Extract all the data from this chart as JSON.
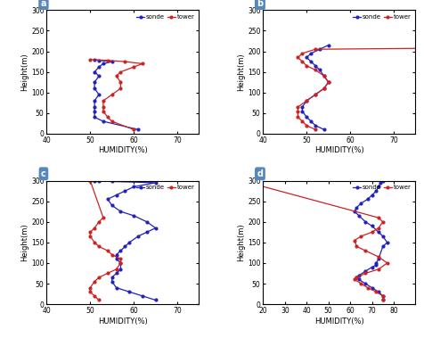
{
  "panels": [
    {
      "label": "a",
      "xlim": [
        40,
        75
      ],
      "xticks": [
        40,
        50,
        60,
        70
      ],
      "ylim": [
        0,
        300
      ],
      "yticks": [
        0,
        50,
        100,
        150,
        200,
        250,
        300
      ],
      "sonde_humidity": [
        61,
        53,
        51,
        51,
        51,
        51,
        52,
        51,
        51,
        52,
        51,
        52,
        53,
        55,
        52,
        51
      ],
      "sonde_height": [
        10,
        30,
        40,
        55,
        65,
        80,
        95,
        110,
        125,
        140,
        150,
        162,
        170,
        175,
        178,
        180
      ],
      "tower_humidity": [
        60,
        55,
        54,
        53,
        53,
        53,
        55,
        57,
        57,
        56,
        57,
        60,
        62,
        58,
        54,
        50
      ],
      "tower_height": [
        10,
        30,
        40,
        55,
        65,
        80,
        95,
        110,
        125,
        140,
        150,
        162,
        170,
        175,
        178,
        180
      ]
    },
    {
      "label": "b",
      "xlim": [
        40,
        75
      ],
      "xticks": [
        40,
        50,
        60,
        70
      ],
      "ylim": [
        0,
        300
      ],
      "yticks": [
        0,
        50,
        100,
        150,
        200,
        250,
        300
      ],
      "sonde_humidity": [
        54,
        52,
        51,
        50,
        49,
        49,
        50,
        52,
        54,
        55,
        54,
        53,
        52,
        51,
        50,
        51,
        53,
        55
      ],
      "sonde_height": [
        10,
        20,
        30,
        40,
        55,
        65,
        80,
        95,
        110,
        125,
        140,
        155,
        165,
        175,
        185,
        195,
        205,
        215
      ],
      "tower_humidity": [
        52,
        50,
        49,
        48,
        48,
        48,
        50,
        52,
        54,
        55,
        54,
        52,
        50,
        49,
        48,
        49,
        52,
        215
      ],
      "tower_height": [
        10,
        20,
        30,
        40,
        55,
        65,
        80,
        95,
        110,
        125,
        140,
        155,
        165,
        175,
        185,
        195,
        205,
        220
      ]
    },
    {
      "label": "c",
      "xlim": [
        40,
        75
      ],
      "xticks": [
        40,
        50,
        60,
        70
      ],
      "ylim": [
        0,
        300
      ],
      "yticks": [
        0,
        50,
        100,
        150,
        200,
        250,
        300
      ],
      "sonde_humidity": [
        65,
        62,
        59,
        56,
        55,
        55,
        56,
        57,
        57,
        56,
        56,
        57,
        58,
        59,
        61,
        63,
        65,
        63,
        60,
        57,
        55,
        54,
        56,
        58,
        60,
        65,
        55,
        52,
        51,
        10
      ],
      "sonde_height": [
        10,
        20,
        30,
        40,
        55,
        65,
        75,
        85,
        100,
        110,
        120,
        130,
        140,
        150,
        165,
        175,
        185,
        200,
        215,
        225,
        240,
        255,
        265,
        275,
        285,
        295,
        298,
        299,
        300,
        300
      ],
      "tower_humidity": [
        52,
        51,
        50,
        50,
        51,
        52,
        54,
        56,
        57,
        57,
        55,
        54,
        52,
        51,
        50,
        50,
        51,
        52,
        53,
        50
      ],
      "tower_height": [
        10,
        20,
        30,
        40,
        55,
        65,
        75,
        85,
        100,
        110,
        120,
        130,
        140,
        150,
        165,
        175,
        185,
        200,
        210,
        300
      ]
    },
    {
      "label": "d",
      "xlim": [
        20,
        90
      ],
      "xticks": [
        20,
        30,
        40,
        50,
        60,
        70,
        80
      ],
      "ylim": [
        0,
        300
      ],
      "yticks": [
        0,
        50,
        100,
        150,
        200,
        250,
        300
      ],
      "sonde_humidity": [
        75,
        75,
        73,
        70,
        67,
        64,
        63,
        64,
        67,
        70,
        72,
        72,
        73,
        75,
        77,
        75,
        73,
        70,
        67,
        64,
        62,
        63,
        65,
        68,
        70,
        72,
        73,
        74,
        75,
        10
      ],
      "sonde_height": [
        10,
        20,
        30,
        40,
        50,
        60,
        65,
        70,
        80,
        90,
        95,
        100,
        110,
        140,
        150,
        165,
        175,
        190,
        200,
        215,
        225,
        235,
        245,
        255,
        265,
        275,
        285,
        295,
        300,
        300
      ],
      "tower_humidity": [
        75,
        75,
        72,
        68,
        65,
        62,
        63,
        67,
        73,
        77,
        73,
        67,
        63,
        62,
        65,
        70,
        73,
        75,
        73,
        10
      ],
      "tower_height": [
        10,
        20,
        30,
        40,
        50,
        60,
        65,
        75,
        85,
        100,
        115,
        130,
        140,
        155,
        165,
        175,
        185,
        200,
        210,
        300
      ]
    }
  ],
  "sonde_color": "#2222bb",
  "tower_color": "#cc2222",
  "label_bg_color": "#5588bb",
  "label_text_color": "white",
  "marker_size": 2.0,
  "linewidth": 0.9,
  "xlabel": "HUMIDITY(%)",
  "ylabel": "Height(m)"
}
